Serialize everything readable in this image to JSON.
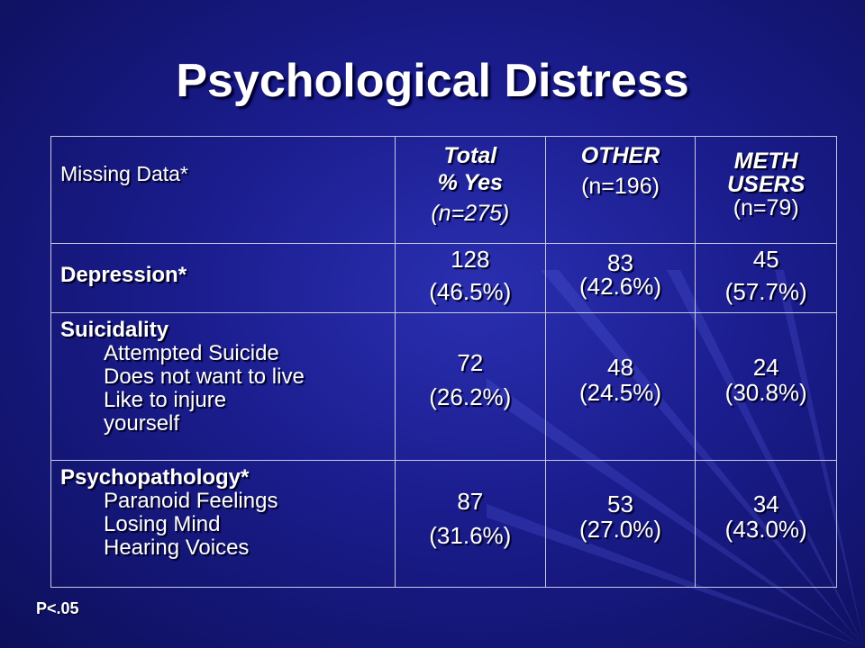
{
  "title": "Psychological Distress",
  "table": {
    "header": {
      "col1": "Missing Data*",
      "total_line1": "Total",
      "total_line2": "% Yes",
      "total_line3": "(n=275)",
      "other_line1": "OTHER",
      "other_line2": "(n=196)",
      "meth_line1": "METH",
      "meth_line2": "USERS",
      "meth_line3": "(n=79)"
    },
    "rows": [
      {
        "label": "Depression*",
        "items": [],
        "total_n": "128",
        "total_pct": "(46.5%)",
        "other_n": "83",
        "other_pct": "(42.6%)",
        "meth_n": "45",
        "meth_pct": "(57.7%)"
      },
      {
        "label": "Suicidality",
        "items": [
          "Attempted Suicide",
          "Does not want to live",
          "Like to injure",
          "yourself"
        ],
        "total_n": "72",
        "total_pct": "(26.2%)",
        "other_n": "48",
        "other_pct": "(24.5%)",
        "meth_n": "24",
        "meth_pct": "(30.8%)"
      },
      {
        "label": "Psychopathology*",
        "items": [
          "Paranoid Feelings",
          "Losing Mind",
          "Hearing Voices"
        ],
        "total_n": "87",
        "total_pct": "(31.6%)",
        "other_n": "53",
        "other_pct": "(27.0%)",
        "meth_n": "34",
        "meth_pct": "(43.0%)"
      }
    ]
  },
  "footnote": "P<.05",
  "colors": {
    "background": "#1a1c8c",
    "text": "#ffffff",
    "border": "#c8c8e0"
  }
}
